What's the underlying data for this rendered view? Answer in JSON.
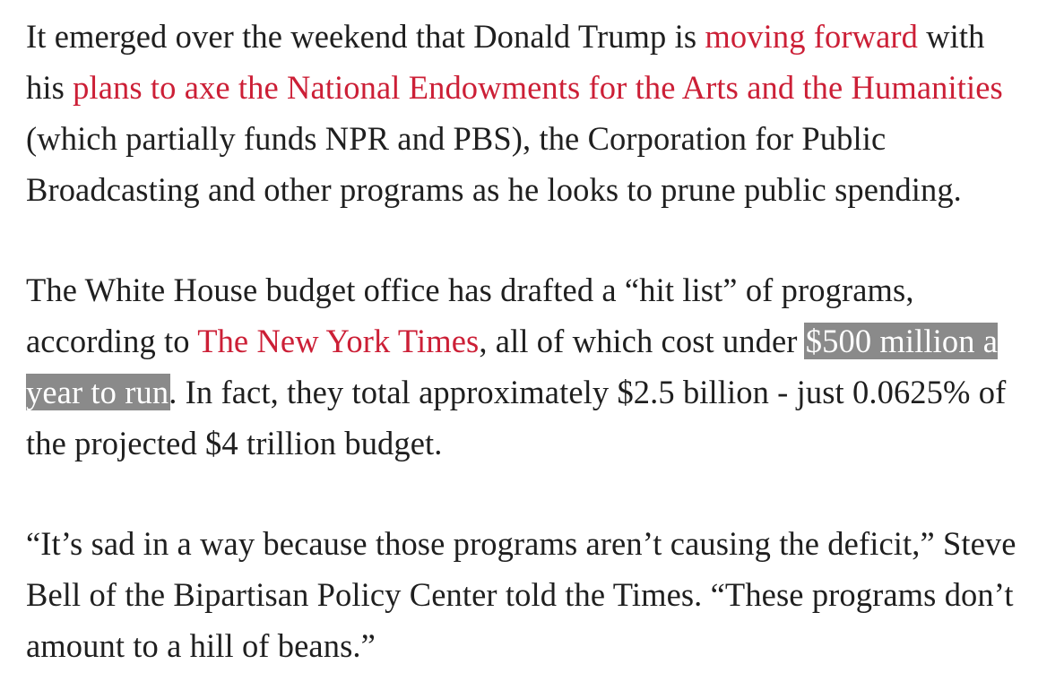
{
  "paragraphs": [
    {
      "t1": "It emerged over the weekend that Donald Trump is ",
      "link1": "moving forward",
      "t2": " with his ",
      "link2": "plans to axe the National Endowments for the Arts and the Humanities",
      "t3": " (which partially funds NPR and PBS), the Corporation for Public Broadcasting and other programs as he looks to prune public spending."
    },
    {
      "t1": "The White House budget office has drafted a “hit list” of programs, according to ",
      "link1": "The New York Times",
      "t2": ", all of which cost under ",
      "highlight": "$500 million a year to run",
      "t3": ". In fact, they total approximately $2.5 billion - just 0.0625% of the projected $4 trillion budget."
    },
    {
      "t1": "“It’s sad in a way because those programs aren’t causing the deficit,” Steve Bell of the Bipartisan Policy Center told the Times. “These programs don’t amount to a hill of beans.”"
    }
  ],
  "colors": {
    "link": "#cc1f36",
    "text": "#1f1f1f",
    "highlight_bg": "#8a8a8a",
    "highlight_text": "#ffffff"
  }
}
